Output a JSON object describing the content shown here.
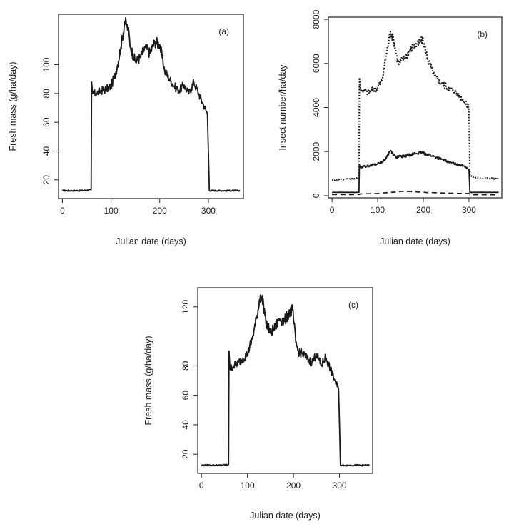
{
  "chart_data": [
    {
      "type": "line",
      "panel_label": "(a)",
      "xlabel": "Julian date (days)",
      "ylabel": "Fresh mass (g/ha/day)",
      "xlim": [
        -8,
        372
      ],
      "ylim": [
        7,
        135
      ],
      "xticks": [
        0,
        100,
        200,
        300
      ],
      "yticks": [
        20,
        40,
        60,
        80,
        100
      ],
      "grid": false,
      "series": [
        {
          "style": "solid",
          "x": [
            0,
            20,
            40,
            59,
            60,
            62,
            70,
            80,
            90,
            100,
            110,
            120,
            128,
            135,
            140,
            150,
            160,
            170,
            180,
            190,
            200,
            210,
            220,
            230,
            240,
            250,
            260,
            270,
            280,
            290,
            298,
            300,
            302,
            320,
            340,
            365
          ],
          "y": [
            12.5,
            12.5,
            12.5,
            13,
            88,
            80,
            80,
            82,
            83,
            85,
            95,
            112,
            130,
            125,
            112,
            102,
            105,
            112,
            108,
            116,
            114,
            96,
            90,
            85,
            82,
            86,
            80,
            88,
            80,
            72,
            66,
            40,
            12.5,
            12.5,
            12.5,
            12.5
          ]
        }
      ]
    },
    {
      "type": "line",
      "panel_label": "(b)",
      "xlabel": "Julian date (days)",
      "ylabel": "Insect number/ha/day",
      "xlim": [
        -8,
        372
      ],
      "ylim": [
        -100,
        8100
      ],
      "xticks": [
        0,
        100,
        200,
        300
      ],
      "yticks": [
        0,
        2000,
        4000,
        6000,
        8000
      ],
      "grid": false,
      "series": [
        {
          "style": "dotted",
          "x": [
            0,
            20,
            40,
            59,
            60,
            62,
            80,
            100,
            110,
            120,
            128,
            135,
            145,
            160,
            175,
            190,
            198,
            210,
            225,
            240,
            255,
            270,
            285,
            300,
            302,
            320,
            340,
            365
          ],
          "y": [
            700,
            750,
            750,
            800,
            5300,
            4800,
            4700,
            4900,
            5300,
            6500,
            7450,
            7100,
            6000,
            6300,
            6700,
            6900,
            7100,
            6200,
            5400,
            5100,
            4900,
            4700,
            4400,
            4000,
            900,
            800,
            800,
            750
          ]
        },
        {
          "style": "solid",
          "x": [
            0,
            30,
            59,
            60,
            62,
            80,
            100,
            115,
            128,
            140,
            160,
            180,
            198,
            220,
            240,
            260,
            280,
            290,
            300,
            302,
            340,
            365
          ],
          "y": [
            150,
            150,
            150,
            1400,
            1300,
            1350,
            1450,
            1600,
            2050,
            1750,
            1800,
            1900,
            1950,
            1800,
            1650,
            1500,
            1400,
            1350,
            1200,
            150,
            150,
            150
          ]
        },
        {
          "style": "dashed",
          "x": [
            0,
            59,
            60,
            62,
            100,
            128,
            160,
            200,
            240,
            280,
            300,
            302,
            340,
            365
          ],
          "y": [
            50,
            50,
            50,
            80,
            100,
            150,
            200,
            150,
            120,
            100,
            100,
            40,
            40,
            40
          ]
        }
      ]
    },
    {
      "type": "line",
      "panel_label": "(c)",
      "xlabel": "Julian date (days)",
      "ylabel": "Fresh mass (g/ha/day)",
      "xlim": [
        -8,
        372
      ],
      "ylim": [
        7,
        133
      ],
      "xticks": [
        0,
        100,
        200,
        300
      ],
      "yticks": [
        20,
        40,
        60,
        80,
        120
      ],
      "grid": false,
      "series": [
        {
          "style": "solid",
          "x": [
            0,
            20,
            40,
            59,
            60,
            62,
            70,
            80,
            90,
            100,
            110,
            120,
            128,
            135,
            140,
            150,
            160,
            170,
            180,
            190,
            198,
            205,
            210,
            220,
            230,
            240,
            250,
            260,
            270,
            280,
            290,
            298,
            300,
            302,
            320,
            340,
            365
          ],
          "y": [
            12.5,
            12.5,
            12.5,
            13,
            90,
            78,
            80,
            82,
            85,
            88,
            98,
            112,
            128,
            122,
            110,
            102,
            106,
            112,
            110,
            116,
            118,
            96,
            90,
            88,
            85,
            82,
            88,
            80,
            86,
            78,
            70,
            64,
            40,
            12.5,
            12.5,
            12.5,
            12.5
          ]
        }
      ]
    }
  ]
}
